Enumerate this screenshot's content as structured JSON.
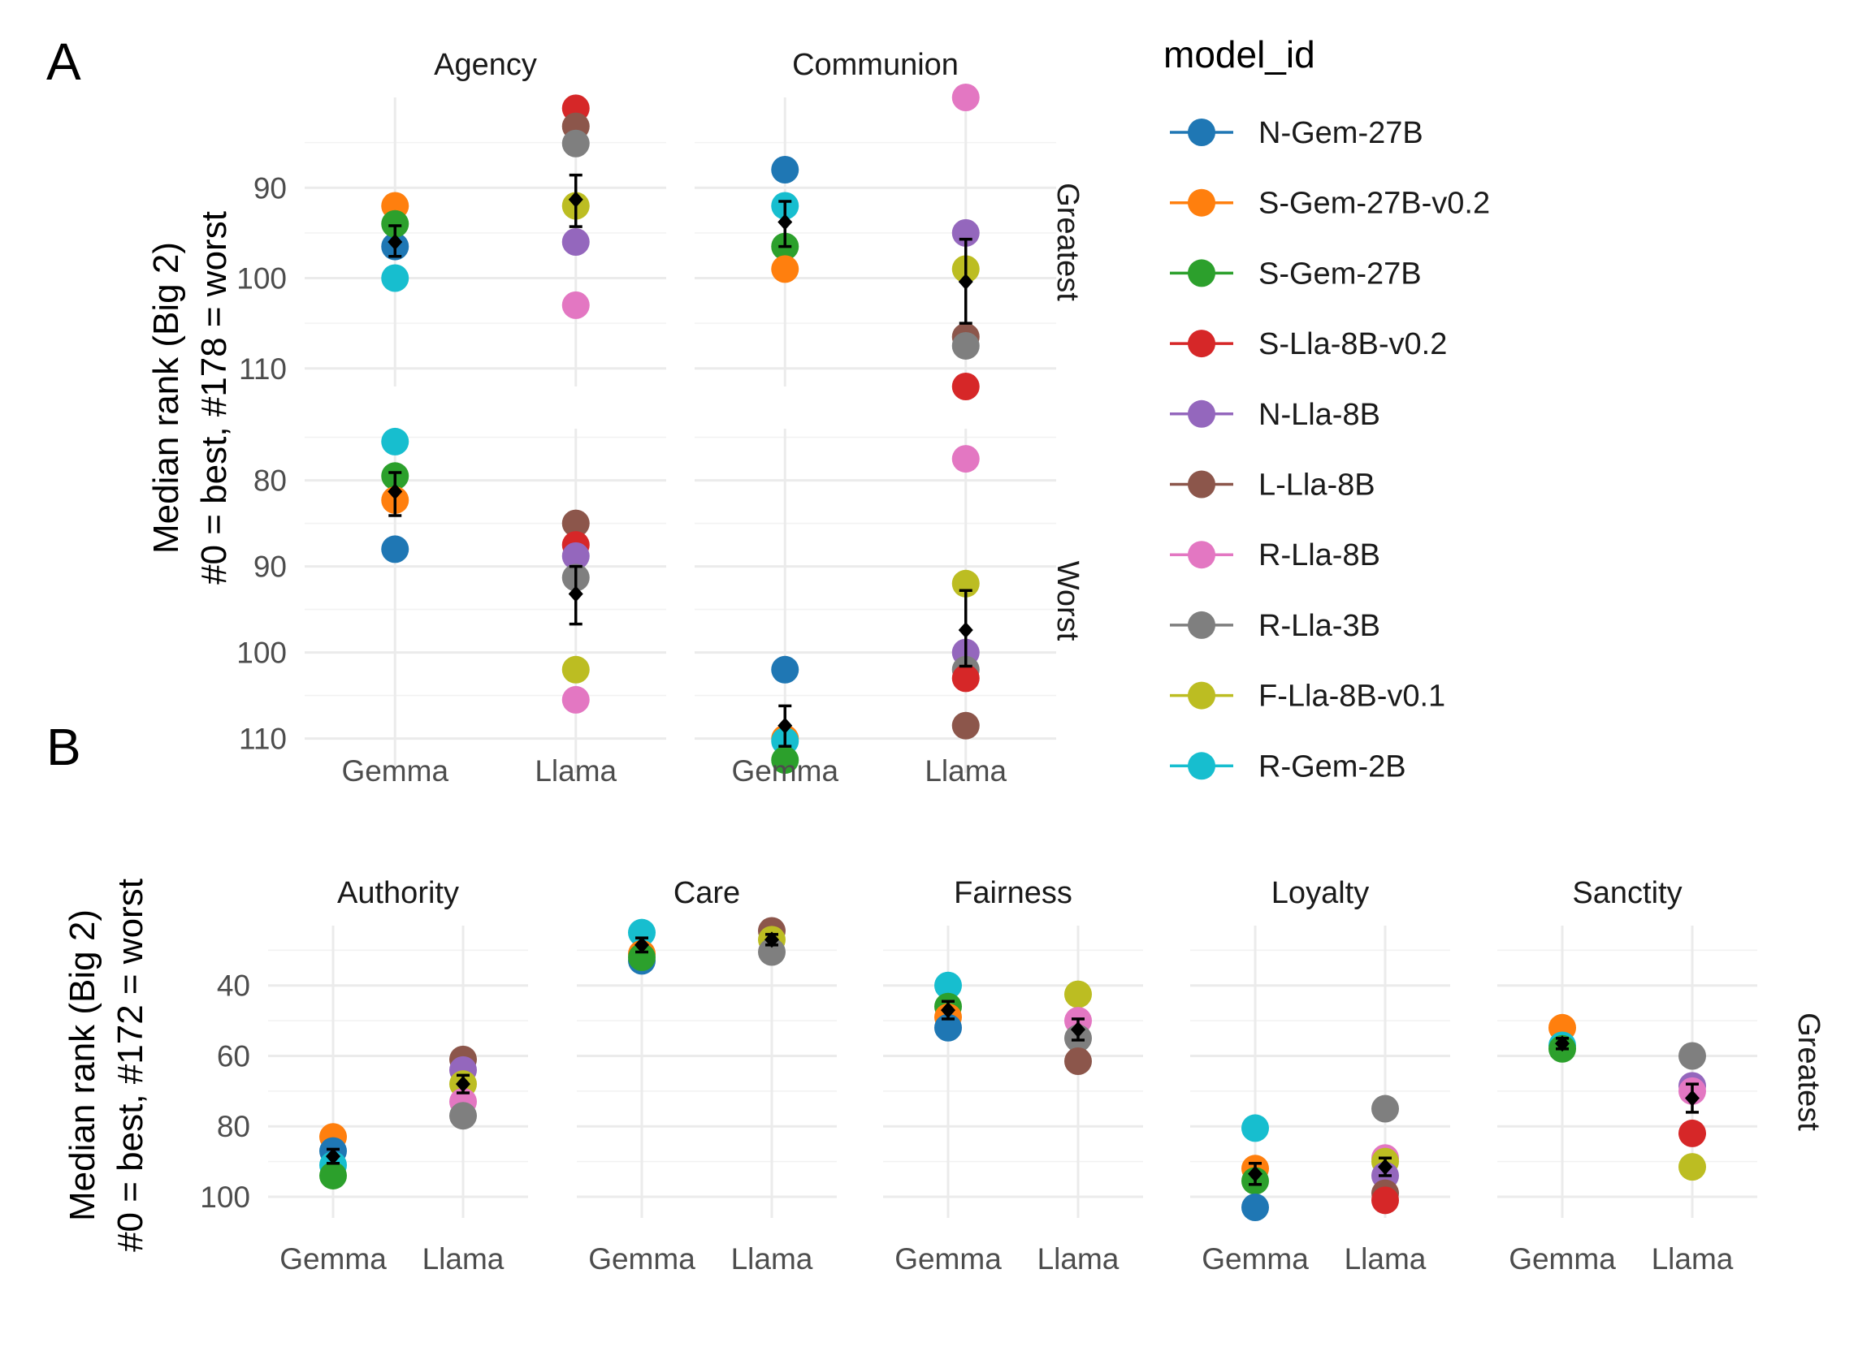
{
  "chart_data": [
    {
      "panel_label": "A",
      "type": "scatter",
      "ylabel_line1": "Median rank (Big 2)",
      "ylabel_line2": "#0 = best, #178 = worst",
      "categories": [
        "Gemma",
        "Llama"
      ],
      "columns": [
        "Agency",
        "Communion"
      ],
      "rows": [
        {
          "label": "Greatest",
          "ylim": [
            80,
            112
          ],
          "yticks": [
            90,
            100,
            110
          ],
          "panels": [
            {
              "column": "Agency",
              "mean": {
                "Gemma": 96,
                "Llama": 91.3
              },
              "err": {
                "Gemma": [
                  94.2,
                  97.6
                ],
                "Llama": [
                  88.6,
                  94.3
                ]
              },
              "points": [
                {
                  "model": "N-Gem-27B",
                  "Gemma": 96.5,
                  "Llama": null
                },
                {
                  "model": "S-Gem-27B-v0.2",
                  "Gemma": 92,
                  "Llama": null
                },
                {
                  "model": "S-Gem-27B",
                  "Gemma": 94,
                  "Llama": null
                },
                {
                  "model": "R-Gem-2B",
                  "Gemma": 100,
                  "Llama": null
                },
                {
                  "model": "S-Lla-8B-v0.2",
                  "Gemma": null,
                  "Llama": 81.2
                },
                {
                  "model": "L-Lla-8B",
                  "Gemma": null,
                  "Llama": 83.2
                },
                {
                  "model": "R-Lla-3B",
                  "Gemma": null,
                  "Llama": 85.1
                },
                {
                  "model": "F-Lla-8B-v0.1",
                  "Gemma": null,
                  "Llama": 92
                },
                {
                  "model": "N-Lla-8B",
                  "Gemma": null,
                  "Llama": 96
                },
                {
                  "model": "R-Lla-8B",
                  "Gemma": null,
                  "Llama": 103
                }
              ]
            },
            {
              "column": "Communion",
              "mean": {
                "Gemma": 93.8,
                "Llama": 100.4
              },
              "err": {
                "Gemma": [
                  91.5,
                  96.5
                ],
                "Llama": [
                  95.7,
                  105
                ]
              },
              "points": [
                {
                  "model": "N-Gem-27B",
                  "Gemma": 88,
                  "Llama": null
                },
                {
                  "model": "R-Gem-2B",
                  "Gemma": 92,
                  "Llama": null
                },
                {
                  "model": "S-Gem-27B",
                  "Gemma": 96.5,
                  "Llama": null
                },
                {
                  "model": "S-Gem-27B-v0.2",
                  "Gemma": 99,
                  "Llama": null
                },
                {
                  "model": "R-Lla-8B",
                  "Gemma": null,
                  "Llama": 80
                },
                {
                  "model": "N-Lla-8B",
                  "Gemma": null,
                  "Llama": 95
                },
                {
                  "model": "F-Lla-8B-v0.1",
                  "Gemma": null,
                  "Llama": 99
                },
                {
                  "model": "L-Lla-8B",
                  "Gemma": null,
                  "Llama": 106.5
                },
                {
                  "model": "R-Lla-3B",
                  "Gemma": null,
                  "Llama": 107.5
                },
                {
                  "model": "S-Lla-8B-v0.2",
                  "Gemma": null,
                  "Llama": 112
                }
              ]
            }
          ]
        },
        {
          "label": "Worst",
          "ylim": [
            74,
            114
          ],
          "yticks": [
            80,
            90,
            100,
            110
          ],
          "panels": [
            {
              "column": "Agency",
              "mean": {
                "Gemma": 81.3,
                "Llama": 93.2
              },
              "err": {
                "Gemma": [
                  79.1,
                  84.1
                ],
                "Llama": [
                  90,
                  96.7
                ]
              },
              "points": [
                {
                  "model": "R-Gem-2B",
                  "Gemma": 75.5,
                  "Llama": null
                },
                {
                  "model": "S-Gem-27B",
                  "Gemma": 79.5,
                  "Llama": null
                },
                {
                  "model": "S-Gem-27B-v0.2",
                  "Gemma": 82.3,
                  "Llama": null
                },
                {
                  "model": "N-Gem-27B",
                  "Gemma": 88,
                  "Llama": null
                },
                {
                  "model": "L-Lla-8B",
                  "Gemma": null,
                  "Llama": 85
                },
                {
                  "model": "S-Lla-8B-v0.2",
                  "Gemma": null,
                  "Llama": 87.5
                },
                {
                  "model": "N-Lla-8B",
                  "Gemma": null,
                  "Llama": 88.8
                },
                {
                  "model": "R-Lla-3B",
                  "Gemma": null,
                  "Llama": 91.3
                },
                {
                  "model": "F-Lla-8B-v0.1",
                  "Gemma": null,
                  "Llama": 102
                },
                {
                  "model": "R-Lla-8B",
                  "Gemma": null,
                  "Llama": 105.5
                }
              ]
            },
            {
              "column": "Communion",
              "mean": {
                "Gemma": 108.5,
                "Llama": 97.4
              },
              "err": {
                "Gemma": [
                  106.2,
                  110.9
                ],
                "Llama": [
                  92.8,
                  101.6
                ]
              },
              "points": [
                {
                  "model": "N-Gem-27B",
                  "Gemma": 102,
                  "Llama": null
                },
                {
                  "model": "S-Gem-27B-v0.2",
                  "Gemma": 110,
                  "Llama": null
                },
                {
                  "model": "R-Gem-2B",
                  "Gemma": 110.3,
                  "Llama": null
                },
                {
                  "model": "S-Gem-27B",
                  "Gemma": 112.5,
                  "Llama": null
                },
                {
                  "model": "R-Lla-8B",
                  "Gemma": null,
                  "Llama": 77.5
                },
                {
                  "model": "F-Lla-8B-v0.1",
                  "Gemma": null,
                  "Llama": 92
                },
                {
                  "model": "N-Lla-8B",
                  "Gemma": null,
                  "Llama": 100
                },
                {
                  "model": "R-Lla-3B",
                  "Gemma": null,
                  "Llama": 102
                },
                {
                  "model": "S-Lla-8B-v0.2",
                  "Gemma": null,
                  "Llama": 103
                },
                {
                  "model": "L-Lla-8B",
                  "Gemma": null,
                  "Llama": 108.5
                }
              ]
            }
          ]
        }
      ]
    },
    {
      "panel_label": "B",
      "type": "scatter",
      "ylabel_line1": "Median rank (Big 2)",
      "ylabel_line2": "#0 = best, #172 = worst",
      "categories": [
        "Gemma",
        "Llama"
      ],
      "columns": [
        "Authority",
        "Care",
        "Fairness",
        "Loyalty",
        "Sanctity"
      ],
      "rows": [
        {
          "label": "Greatest",
          "ylim": [
            23,
            106
          ],
          "yticks": [
            40,
            60,
            80,
            100
          ],
          "panels": [
            {
              "column": "Authority",
              "mean": {
                "Gemma": 88.5,
                "Llama": 68
              },
              "err": {
                "Gemma": [
                  86.5,
                  90.5
                ],
                "Llama": [
                  65.5,
                  70.5
                ]
              },
              "points": [
                {
                  "model": "S-Gem-27B-v0.2",
                  "Gemma": 83,
                  "Llama": null
                },
                {
                  "model": "N-Gem-27B",
                  "Gemma": 87,
                  "Llama": null
                },
                {
                  "model": "R-Gem-2B",
                  "Gemma": 91,
                  "Llama": null
                },
                {
                  "model": "S-Gem-27B",
                  "Gemma": 94,
                  "Llama": null
                },
                {
                  "model": "L-Lla-8B",
                  "Gemma": null,
                  "Llama": 61
                },
                {
                  "model": "N-Lla-8B",
                  "Gemma": null,
                  "Llama": 64
                },
                {
                  "model": "F-Lla-8B-v0.1",
                  "Gemma": null,
                  "Llama": 68
                },
                {
                  "model": "R-Lla-8B",
                  "Gemma": null,
                  "Llama": 73
                },
                {
                  "model": "R-Lla-3B",
                  "Gemma": null,
                  "Llama": 77
                }
              ]
            },
            {
              "column": "Care",
              "mean": {
                "Gemma": 28.5,
                "Llama": 27
              },
              "err": {
                "Gemma": [
                  26.5,
                  30.5
                ],
                "Llama": [
                  25.5,
                  28.5
                ]
              },
              "points": [
                {
                  "model": "R-Gem-2B",
                  "Gemma": 25,
                  "Llama": null
                },
                {
                  "model": "S-Gem-27B-v0.2",
                  "Gemma": 31,
                  "Llama": null
                },
                {
                  "model": "N-Gem-27B",
                  "Gemma": 33,
                  "Llama": null
                },
                {
                  "model": "S-Gem-27B",
                  "Gemma": 32,
                  "Llama": null
                },
                {
                  "model": "L-Lla-8B",
                  "Gemma": null,
                  "Llama": 24.5
                },
                {
                  "model": "F-Lla-8B-v0.1",
                  "Gemma": null,
                  "Llama": 27
                },
                {
                  "model": "R-Lla-3B",
                  "Gemma": null,
                  "Llama": 30.5
                }
              ]
            },
            {
              "column": "Fairness",
              "mean": {
                "Gemma": 47,
                "Llama": 52.5
              },
              "err": {
                "Gemma": [
                  44.5,
                  49.5
                ],
                "Llama": [
                  49.5,
                  55.5
                ]
              },
              "points": [
                {
                  "model": "R-Gem-2B",
                  "Gemma": 40,
                  "Llama": null
                },
                {
                  "model": "S-Gem-27B",
                  "Gemma": 46,
                  "Llama": null
                },
                {
                  "model": "S-Gem-27B-v0.2",
                  "Gemma": 49,
                  "Llama": null
                },
                {
                  "model": "N-Gem-27B",
                  "Gemma": 52,
                  "Llama": null
                },
                {
                  "model": "F-Lla-8B-v0.1",
                  "Gemma": null,
                  "Llama": 42.5
                },
                {
                  "model": "R-Lla-8B",
                  "Gemma": null,
                  "Llama": 50
                },
                {
                  "model": "R-Lla-3B",
                  "Gemma": null,
                  "Llama": 55
                },
                {
                  "model": "L-Lla-8B",
                  "Gemma": null,
                  "Llama": 61.5
                }
              ]
            },
            {
              "column": "Loyalty",
              "mean": {
                "Gemma": 93.5,
                "Llama": 91.5
              },
              "err": {
                "Gemma": [
                  90.5,
                  96.5
                ],
                "Llama": [
                  89,
                  94
                ]
              },
              "points": [
                {
                  "model": "R-Gem-2B",
                  "Gemma": 80.5,
                  "Llama": null
                },
                {
                  "model": "S-Gem-27B-v0.2",
                  "Gemma": 92,
                  "Llama": null
                },
                {
                  "model": "S-Gem-27B",
                  "Gemma": 95.5,
                  "Llama": null
                },
                {
                  "model": "N-Gem-27B",
                  "Gemma": 103,
                  "Llama": null
                },
                {
                  "model": "R-Lla-3B",
                  "Gemma": null,
                  "Llama": 75
                },
                {
                  "model": "R-Lla-8B",
                  "Gemma": null,
                  "Llama": 89
                },
                {
                  "model": "F-Lla-8B-v0.1",
                  "Gemma": null,
                  "Llama": 90
                },
                {
                  "model": "N-Lla-8B",
                  "Gemma": null,
                  "Llama": 94
                },
                {
                  "model": "L-Lla-8B",
                  "Gemma": null,
                  "Llama": 99
                },
                {
                  "model": "S-Lla-8B-v0.2",
                  "Gemma": null,
                  "Llama": 101
                }
              ]
            },
            {
              "column": "Sanctity",
              "mean": {
                "Gemma": 56.5,
                "Llama": 72
              },
              "err": {
                "Gemma": [
                  55,
                  58
                ],
                "Llama": [
                  68,
                  76
                ]
              },
              "points": [
                {
                  "model": "S-Gem-27B-v0.2",
                  "Gemma": 52,
                  "Llama": null
                },
                {
                  "model": "R-Gem-2B",
                  "Gemma": 57,
                  "Llama": null
                },
                {
                  "model": "S-Gem-27B",
                  "Gemma": 58,
                  "Llama": null
                },
                {
                  "model": "R-Lla-3B",
                  "Gemma": null,
                  "Llama": 60
                },
                {
                  "model": "N-Lla-8B",
                  "Gemma": null,
                  "Llama": 68.5
                },
                {
                  "model": "R-Lla-8B",
                  "Gemma": null,
                  "Llama": 70
                },
                {
                  "model": "S-Lla-8B-v0.2",
                  "Gemma": null,
                  "Llama": 82
                },
                {
                  "model": "F-Lla-8B-v0.1",
                  "Gemma": null,
                  "Llama": 91.5
                }
              ]
            }
          ]
        }
      ]
    }
  ],
  "legend": {
    "title": "model_id",
    "items": [
      {
        "label": "N-Gem-27B",
        "color": "#1f77b4"
      },
      {
        "label": "S-Gem-27B-v0.2",
        "color": "#ff7f0e"
      },
      {
        "label": "S-Gem-27B",
        "color": "#2ca02c"
      },
      {
        "label": "S-Lla-8B-v0.2",
        "color": "#d62728"
      },
      {
        "label": "N-Lla-8B",
        "color": "#9467bd"
      },
      {
        "label": "L-Lla-8B",
        "color": "#8c564b"
      },
      {
        "label": "R-Lla-8B",
        "color": "#e377c2"
      },
      {
        "label": "R-Lla-3B",
        "color": "#7f7f7f"
      },
      {
        "label": "F-Lla-8B-v0.1",
        "color": "#bcbd22"
      },
      {
        "label": "R-Gem-2B",
        "color": "#17becf"
      }
    ]
  },
  "mean_marker_color": "#000000"
}
